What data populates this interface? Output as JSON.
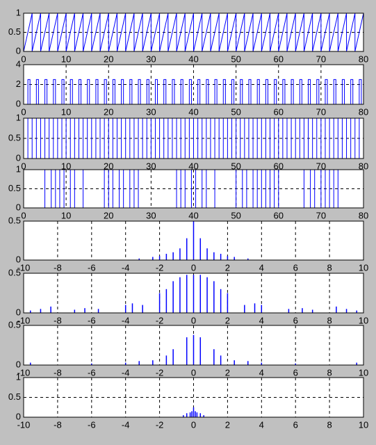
{
  "chart_data": [
    {
      "type": "line",
      "xlim": [
        0,
        80
      ],
      "xticks": [
        0,
        10,
        20,
        30,
        40,
        50,
        60,
        70,
        80
      ],
      "ylim": [
        0,
        1
      ],
      "yticks": [
        0,
        0.5,
        1
      ],
      "grid": true,
      "color": "#0000ff",
      "x": [
        0,
        2,
        2,
        4,
        4,
        6,
        6,
        8,
        8,
        10,
        10,
        12,
        12,
        14,
        14,
        16,
        16,
        18,
        18,
        20,
        20,
        22,
        22,
        24,
        24,
        26,
        26,
        28,
        28,
        30,
        30,
        32,
        32,
        34,
        34,
        36,
        36,
        38,
        38,
        40,
        40,
        42,
        42,
        44,
        44,
        46,
        46,
        48,
        48,
        50,
        50,
        52,
        52,
        54,
        54,
        56,
        56,
        58,
        58,
        60,
        60,
        62,
        62,
        64,
        64,
        66,
        66,
        68,
        68,
        70,
        70,
        72,
        72,
        74,
        74,
        76,
        76,
        78,
        78,
        80
      ],
      "values": [
        0,
        1,
        0,
        1,
        0,
        1,
        0,
        1,
        0,
        1,
        0,
        1,
        0,
        1,
        0,
        1,
        0,
        1,
        0,
        1,
        0,
        1,
        0,
        1,
        0,
        1,
        0,
        1,
        0,
        1,
        0,
        1,
        0,
        1,
        0,
        1,
        0,
        1,
        0,
        1,
        0,
        1,
        0,
        1,
        0,
        1,
        0,
        1,
        0,
        1,
        0,
        1,
        0,
        1,
        0,
        1,
        0,
        1,
        0,
        1,
        0,
        1,
        0,
        1,
        0,
        1,
        0,
        1,
        0,
        1,
        0,
        1,
        0,
        1,
        0,
        1,
        0,
        1,
        0,
        1
      ]
    },
    {
      "type": "pulse",
      "xlim": [
        0,
        80
      ],
      "xticks": [
        0,
        10,
        20,
        30,
        40,
        50,
        60,
        70,
        80
      ],
      "ylim": [
        0,
        4
      ],
      "yticks": [
        0,
        2,
        4
      ],
      "grid": true,
      "color": "#0000ff",
      "x_start": [
        1,
        3,
        5,
        7,
        9,
        11,
        13,
        15,
        17,
        19,
        21,
        23,
        25,
        27,
        29,
        31,
        33,
        35,
        37,
        39,
        41,
        43,
        45,
        47,
        49,
        51,
        53,
        55,
        57,
        59,
        61,
        63,
        65,
        67,
        69,
        71,
        73,
        75,
        77,
        79
      ],
      "x_end": [
        1.5,
        3.5,
        5.5,
        7.5,
        9.5,
        11.5,
        13.5,
        15.5,
        17.5,
        19.5,
        21.5,
        23.5,
        25.5,
        27.5,
        29.5,
        31.5,
        33.5,
        35.5,
        37.5,
        39.5,
        41.5,
        43.5,
        45.5,
        47.5,
        49.5,
        51.5,
        53.5,
        55.5,
        57.5,
        59.5,
        61.5,
        63.5,
        65.5,
        67.5,
        69.5,
        71.5,
        73.5,
        75.5,
        77.5,
        79.5
      ],
      "values": [
        2.5,
        2.5,
        2.5,
        2.5,
        2.5,
        2.5,
        2.5,
        2.5,
        2.5,
        2.5,
        2.5,
        2.5,
        2.5,
        2.5,
        2.5,
        2.5,
        2.5,
        2.5,
        2.5,
        2.5,
        2.5,
        2.5,
        2.5,
        2.5,
        2.5,
        2.5,
        2.5,
        2.5,
        2.5,
        2.5,
        2.5,
        2.5,
        2.5,
        2.5,
        2.5,
        2.5,
        2.5,
        2.5,
        2.5,
        2.5
      ]
    },
    {
      "type": "pulse",
      "xlim": [
        0,
        80
      ],
      "xticks": [
        0,
        10,
        20,
        30,
        40,
        50,
        60,
        70,
        80
      ],
      "ylim": [
        0,
        1
      ],
      "yticks": [
        0,
        0.5,
        1
      ],
      "grid": true,
      "color": "#0000ff",
      "x_start": [
        0,
        2,
        4,
        6,
        8,
        10,
        12,
        14,
        16,
        18,
        20,
        22,
        24,
        26,
        28,
        30,
        32,
        34,
        36,
        38,
        40,
        42,
        44,
        46,
        48,
        50,
        52,
        54,
        56,
        58,
        60,
        62,
        64,
        66,
        68,
        70,
        72,
        74,
        76,
        78
      ],
      "x_end": [
        1,
        3,
        5,
        7,
        9,
        11,
        13,
        15,
        17,
        19,
        21,
        23,
        25,
        27,
        29,
        31,
        33,
        35,
        37,
        39,
        41,
        43,
        45,
        47,
        49,
        51,
        53,
        55,
        57,
        59,
        61,
        63,
        65,
        67,
        69,
        71,
        73,
        75,
        77,
        79
      ],
      "values": [
        1,
        1,
        1,
        1,
        1,
        1,
        1,
        1,
        1,
        1,
        1,
        1,
        1,
        1,
        1,
        1,
        1,
        1,
        1,
        1,
        1,
        1,
        1,
        1,
        1,
        1,
        1,
        1,
        1,
        1,
        1,
        1,
        1,
        1,
        1,
        1,
        1,
        1,
        1,
        1
      ]
    },
    {
      "type": "pulse",
      "xlim": [
        0,
        80
      ],
      "xticks": [
        0,
        10,
        20,
        30,
        40,
        50,
        60,
        70,
        80
      ],
      "ylim": [
        0,
        1
      ],
      "yticks": [
        0,
        0.5,
        1
      ],
      "grid": true,
      "color": "#0000ff",
      "x_start": [
        5,
        7.5,
        9.5,
        12,
        19,
        21,
        23.5,
        26,
        36,
        38,
        40.5,
        43,
        50,
        52.5,
        55,
        57,
        59,
        66,
        68.5,
        71,
        73
      ],
      "x_end": [
        6.5,
        8.5,
        11,
        14,
        20,
        22.5,
        25,
        27,
        37,
        39.5,
        42,
        45,
        51.5,
        54,
        56,
        58,
        60,
        67.5,
        70,
        72,
        74
      ],
      "values": [
        1,
        1,
        1,
        1,
        1,
        1,
        1,
        1,
        1,
        1,
        1,
        1,
        1,
        1,
        1,
        1,
        1,
        1,
        1,
        1,
        1
      ]
    },
    {
      "type": "stem",
      "xlim": [
        -10,
        10
      ],
      "xticks": [
        -10,
        -8,
        -6,
        -4,
        -2,
        0,
        2,
        4,
        6,
        8,
        10
      ],
      "ylim": [
        0,
        0.5
      ],
      "yticks": [
        0,
        0.5
      ],
      "grid": true,
      "color": "#0000ff",
      "x": [
        -3.2,
        -2.4,
        -2,
        -1.6,
        -1.2,
        -0.8,
        -0.4,
        0,
        0.4,
        0.8,
        1.2,
        1.6,
        2,
        2.4,
        3.2
      ],
      "values": [
        0.02,
        0.04,
        0.05,
        0.08,
        0.1,
        0.15,
        0.28,
        0.5,
        0.28,
        0.15,
        0.1,
        0.08,
        0.05,
        0.04,
        0.02
      ]
    },
    {
      "type": "stem",
      "xlim": [
        -10,
        10
      ],
      "xticks": [
        -10,
        -8,
        -6,
        -4,
        -2,
        0,
        2,
        4,
        6,
        8,
        10
      ],
      "ylim": [
        0,
        0.5
      ],
      "yticks": [
        0,
        0.5
      ],
      "grid": true,
      "color": "#0000ff",
      "x": [
        -9.6,
        -9,
        -8.4,
        -7,
        -6.4,
        -5.6,
        -4,
        -3.6,
        -3,
        -2,
        -1.6,
        -1.2,
        -0.8,
        -0.4,
        0,
        0.4,
        0.8,
        1.2,
        1.6,
        2,
        3,
        3.6,
        4,
        5.6,
        6.4,
        7,
        8.4,
        9,
        9.6
      ],
      "values": [
        0.03,
        0.05,
        0.08,
        0.04,
        0.06,
        0.05,
        0.1,
        0.12,
        0.1,
        0.25,
        0.3,
        0.4,
        0.45,
        0.48,
        0.48,
        0.48,
        0.45,
        0.4,
        0.3,
        0.25,
        0.1,
        0.12,
        0.1,
        0.05,
        0.06,
        0.04,
        0.08,
        0.05,
        0.03
      ]
    },
    {
      "type": "stem",
      "xlim": [
        -10,
        10
      ],
      "xticks": [
        -10,
        -8,
        -6,
        -4,
        -2,
        0,
        2,
        4,
        6,
        8,
        10
      ],
      "ylim": [
        0,
        0.5
      ],
      "yticks": [
        0,
        0.5
      ],
      "grid": true,
      "color": "#0000ff",
      "x": [
        -9.6,
        -6,
        -4,
        -3.2,
        -2.4,
        -1.6,
        -1.2,
        -0.4,
        0,
        0.4,
        1.2,
        1.6,
        2.4,
        3.2,
        4,
        6,
        9.6
      ],
      "values": [
        0.03,
        0.02,
        0.03,
        0.05,
        0.06,
        0.12,
        0.2,
        0.35,
        0.38,
        0.35,
        0.2,
        0.12,
        0.06,
        0.05,
        0.03,
        0.02,
        0.03
      ]
    },
    {
      "type": "stem",
      "xlim": [
        -10,
        10
      ],
      "xticks": [
        -10,
        -8,
        -6,
        -4,
        -2,
        0,
        2,
        4,
        6,
        8,
        10
      ],
      "ylim": [
        0,
        1
      ],
      "yticks": [
        0,
        0.5,
        1
      ],
      "grid": true,
      "color": "#0000ff",
      "x": [
        -0.6,
        -0.4,
        -0.2,
        -0.1,
        0,
        0.1,
        0.2,
        0.4,
        0.6
      ],
      "values": [
        0.05,
        0.1,
        0.12,
        0.15,
        0.25,
        0.15,
        0.12,
        0.1,
        0.05
      ]
    }
  ]
}
